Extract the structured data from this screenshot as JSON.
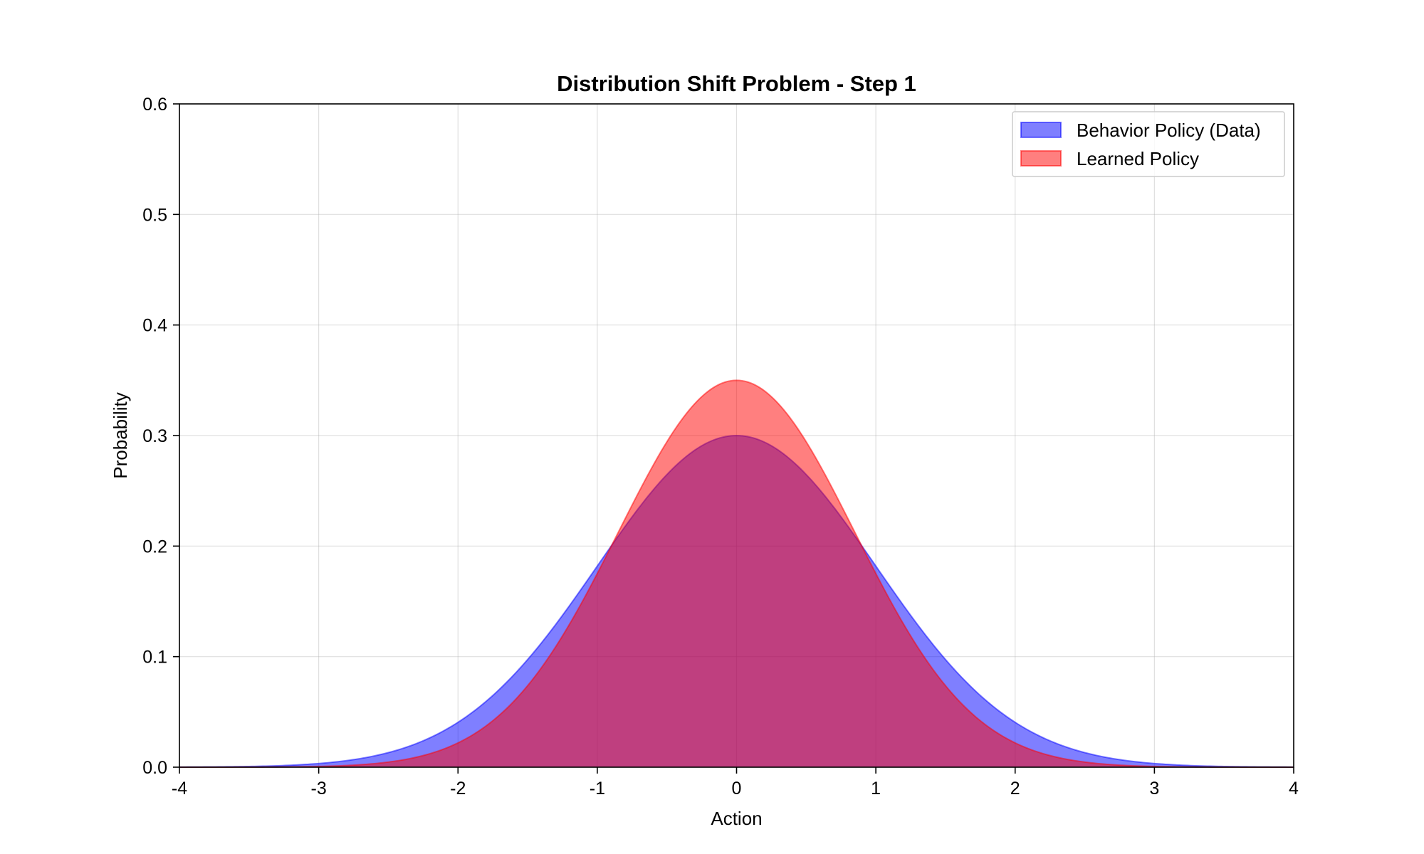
{
  "chart_data": {
    "type": "area",
    "title": "Distribution Shift Problem - Step 1",
    "xlabel": "Action",
    "ylabel": "Probability",
    "xlim": [
      -4,
      4
    ],
    "ylim": [
      0,
      0.6
    ],
    "x_ticks": [
      "-4",
      "-3",
      "-2",
      "-1",
      "0",
      "1",
      "2",
      "3",
      "4"
    ],
    "y_ticks": [
      "0.0",
      "0.1",
      "0.2",
      "0.3",
      "0.4",
      "0.5",
      "0.6"
    ],
    "grid": true,
    "legend_position": "top-right",
    "series": [
      {
        "name": "Behavior Policy (Data)",
        "color": "#0000ff",
        "distribution": "normal",
        "mean": 0,
        "peak": 0.3,
        "std": 1.0,
        "x": [
          -4,
          -3.5,
          -3,
          -2.5,
          -2,
          -1.5,
          -1,
          -0.5,
          0,
          0.5,
          1,
          1.5,
          2,
          2.5,
          3,
          3.5,
          4
        ],
        "values": [
          0.0001,
          0.0007,
          0.0033,
          0.0132,
          0.0406,
          0.0974,
          0.182,
          0.2648,
          0.3,
          0.2648,
          0.182,
          0.0974,
          0.0406,
          0.0132,
          0.0033,
          0.0007,
          0.0001
        ]
      },
      {
        "name": "Learned Policy",
        "color": "#ff0000",
        "distribution": "normal",
        "mean": 0,
        "peak": 0.35,
        "std": 0.85,
        "x": [
          -4,
          -3.5,
          -3,
          -2.5,
          -2,
          -1.5,
          -1,
          -0.5,
          0,
          0.5,
          1,
          1.5,
          2,
          2.5,
          3,
          3.5,
          4
        ],
        "values": [
          0.0,
          0.0001,
          0.0007,
          0.0045,
          0.022,
          0.0738,
          0.1756,
          0.2951,
          0.35,
          0.2951,
          0.1756,
          0.0738,
          0.022,
          0.0045,
          0.0007,
          0.0001,
          0.0
        ]
      }
    ]
  }
}
